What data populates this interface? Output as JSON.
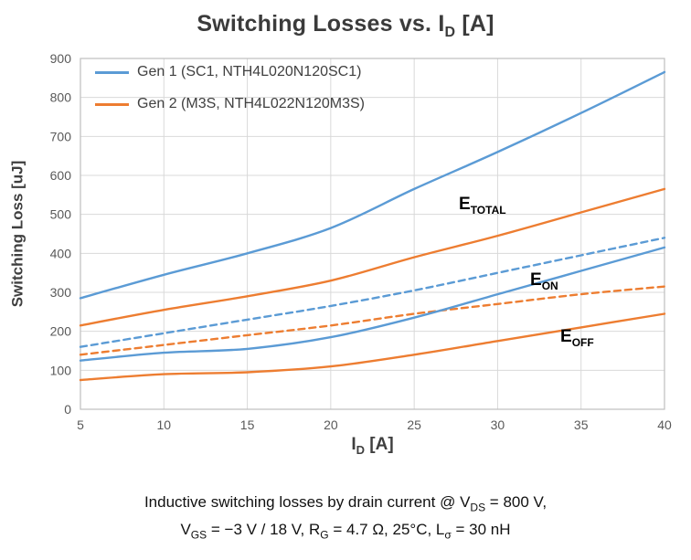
{
  "title": {
    "parts": [
      "Switching Losses vs. I",
      "D",
      " [A]"
    ]
  },
  "legend": {
    "items": [
      {
        "label": "Gen 1 (SC1, NTH4L020N120SC1)"
      },
      {
        "label": "Gen 2 (M3S, NTH4L022N120M3S)"
      }
    ]
  },
  "annotations": [
    {
      "main": "E",
      "sub": "TOTAL"
    },
    {
      "main": "E",
      "sub": "ON"
    },
    {
      "main": "E",
      "sub": "OFF"
    }
  ],
  "x_axis": {
    "parts": [
      "I",
      "D",
      " [A]"
    ]
  },
  "y_axis": {
    "label": "Switching Loss [uJ]"
  },
  "caption": {
    "line1_parts": [
      "Inductive switching losses by drain current @ V",
      "DS",
      " = 800 V,"
    ],
    "line2_parts": [
      "V",
      "GS",
      " = −3 V / 18 V, R",
      "G",
      " = 4.7 Ω, 25°C, L",
      "σ",
      " = 30 nH"
    ]
  },
  "chart_data": {
    "type": "line",
    "title": "Switching Losses vs. I_D [A]",
    "xlabel": "I_D [A]",
    "ylabel": "Switching Loss [uJ]",
    "xlim": [
      5,
      40
    ],
    "ylim": [
      0,
      900
    ],
    "x_ticks": [
      5,
      10,
      15,
      20,
      25,
      30,
      35,
      40
    ],
    "y_ticks": [
      0,
      100,
      200,
      300,
      400,
      500,
      600,
      700,
      800,
      900
    ],
    "grid": true,
    "grid_color": "#d9d9d9",
    "border_color": "#bfbfbf",
    "legend_position": "top-left",
    "colors": {
      "gen1_blue": "#5b9bd5",
      "gen2_orange": "#ed7d31"
    },
    "x": [
      5,
      10,
      15,
      20,
      25,
      30,
      35,
      40
    ],
    "series": [
      {
        "id": "gen1-etotal",
        "name": "Gen 1 E_TOTAL",
        "color": "#5b9bd5",
        "style": "solid",
        "values": [
          285,
          345,
          400,
          465,
          565,
          660,
          760,
          865
        ]
      },
      {
        "id": "gen2-etotal",
        "name": "Gen 2 E_TOTAL",
        "color": "#ed7d31",
        "style": "solid",
        "values": [
          215,
          255,
          290,
          330,
          390,
          445,
          505,
          565
        ]
      },
      {
        "id": "gen1-eon",
        "name": "Gen 1 E_ON",
        "color": "#5b9bd5",
        "style": "dashed",
        "values": [
          160,
          195,
          230,
          265,
          305,
          350,
          395,
          440
        ]
      },
      {
        "id": "gen2-eon",
        "name": "Gen 2 E_ON",
        "color": "#ed7d31",
        "style": "dashed",
        "values": [
          140,
          165,
          190,
          215,
          245,
          270,
          295,
          315
        ]
      },
      {
        "id": "gen1-eoff",
        "name": "Gen 1 E_OFF",
        "color": "#5b9bd5",
        "style": "solid",
        "values": [
          125,
          145,
          155,
          185,
          235,
          295,
          355,
          415
        ]
      },
      {
        "id": "gen2-eoff",
        "name": "Gen 2 E_OFF",
        "color": "#ed7d31",
        "style": "solid",
        "values": [
          75,
          90,
          95,
          110,
          140,
          175,
          210,
          245
        ]
      }
    ]
  }
}
